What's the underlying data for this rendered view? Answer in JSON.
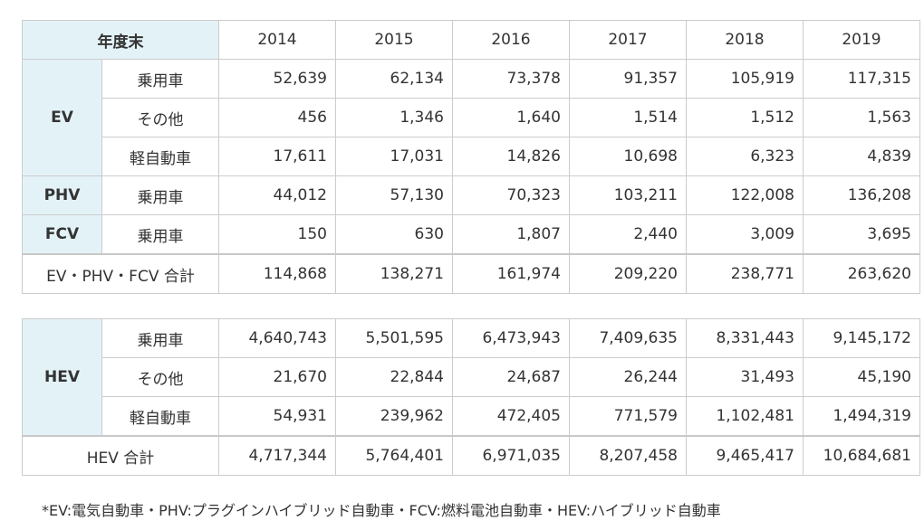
{
  "ev_table": {
    "header": {
      "label": "年度末",
      "years": [
        "2014",
        "2015",
        "2016",
        "2017",
        "2018",
        "2019"
      ]
    },
    "ev": {
      "group": "EV",
      "rows": [
        {
          "label": "乗用車",
          "values": [
            "52,639",
            "62,134",
            "73,378",
            "91,357",
            "105,919",
            "117,315"
          ]
        },
        {
          "label": "その他",
          "values": [
            "456",
            "1,346",
            "1,640",
            "1,514",
            "1,512",
            "1,563"
          ]
        },
        {
          "label": "軽自動車",
          "values": [
            "17,611",
            "17,031",
            "14,826",
            "10,698",
            "6,323",
            "4,839"
          ]
        }
      ]
    },
    "phv": {
      "group": "PHV",
      "label": "乗用車",
      "values": [
        "44,012",
        "57,130",
        "70,323",
        "103,211",
        "122,008",
        "136,208"
      ]
    },
    "fcv": {
      "group": "FCV",
      "label": "乗用車",
      "values": [
        "150",
        "630",
        "1,807",
        "2,440",
        "3,009",
        "3,695"
      ]
    },
    "total": {
      "label": "EV・PHV・FCV 合計",
      "values": [
        "114,868",
        "138,271",
        "161,974",
        "209,220",
        "238,771",
        "263,620"
      ]
    }
  },
  "hev_table": {
    "group": "HEV",
    "rows": [
      {
        "label": "乗用車",
        "values": [
          "4,640,743",
          "5,501,595",
          "6,473,943",
          "7,409,635",
          "8,331,443",
          "9,145,172"
        ]
      },
      {
        "label": "その他",
        "values": [
          "21,670",
          "22,844",
          "24,687",
          "26,244",
          "31,493",
          "45,190"
        ]
      },
      {
        "label": "軽自動車",
        "values": [
          "54,931",
          "239,962",
          "472,405",
          "771,579",
          "1,102,481",
          "1,494,319"
        ]
      }
    ],
    "total": {
      "label": "HEV 合計",
      "values": [
        "4,717,344",
        "5,764,401",
        "6,971,035",
        "8,207,458",
        "9,465,417",
        "10,684,681"
      ]
    }
  },
  "footnote": "*EV:電気自動車・PHV:プラグインハイブリッド自動車・FCV:燃料電池自動車・HEV:ハイブリッド自動車",
  "colors": {
    "header_bg": "#e3f2f7",
    "border": "#cccccc",
    "text": "#333333"
  }
}
